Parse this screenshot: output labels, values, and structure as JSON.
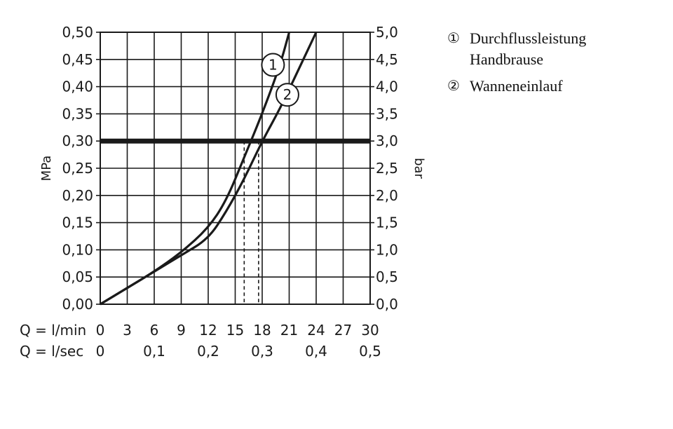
{
  "chart_data": {
    "type": "line",
    "title": "",
    "left_axis": {
      "label": "MPa",
      "range": [
        0,
        0.5
      ],
      "tick_labels": [
        "0,00",
        "0,05",
        "0,10",
        "0,15",
        "0,20",
        "0,25",
        "0,30",
        "0,35",
        "0,40",
        "0,45",
        "0,50"
      ]
    },
    "right_axis": {
      "label": "bar",
      "range": [
        0,
        5.0
      ],
      "tick_labels": [
        "0,0",
        "0,5",
        "1,0",
        "1,5",
        "2,0",
        "2,5",
        "3,0",
        "3,5",
        "4,0",
        "4,5",
        "5,0"
      ]
    },
    "x_axis_lmin": {
      "label": "Q = l/min",
      "range": [
        0,
        30
      ],
      "tick_labels": [
        "0",
        "3",
        "6",
        "9",
        "12",
        "15",
        "18",
        "21",
        "24",
        "27",
        "30"
      ]
    },
    "x_axis_lsec": {
      "label": "Q = l/sec",
      "ticks": [
        {
          "value": 0,
          "label": "0"
        },
        {
          "value": 0.1,
          "label": "0,1"
        },
        {
          "value": 0.2,
          "label": "0,2"
        },
        {
          "value": 0.3,
          "label": "0,3"
        },
        {
          "value": 0.4,
          "label": "0,4"
        },
        {
          "value": 0.5,
          "label": "0,5"
        }
      ]
    },
    "grid": true,
    "reference_line": {
      "y": 0.3
    },
    "series": [
      {
        "marker": "1",
        "x": [
          0,
          3,
          6,
          9,
          12,
          14,
          16,
          18,
          20,
          21
        ],
        "y": [
          0,
          0.03,
          0.06,
          0.095,
          0.14,
          0.19,
          0.27,
          0.35,
          0.44,
          0.5
        ],
        "marker_at": [
          19.2,
          0.44
        ],
        "drop_at_0.30": 16
      },
      {
        "marker": "2",
        "x": [
          0,
          3,
          6,
          9,
          12,
          14,
          16,
          18,
          20,
          22,
          24
        ],
        "y": [
          0,
          0.03,
          0.06,
          0.09,
          0.12,
          0.17,
          0.23,
          0.3,
          0.36,
          0.43,
          0.5
        ],
        "marker_at": [
          20.8,
          0.385
        ],
        "drop_at_0.30": 17.6
      }
    ]
  },
  "legend": {
    "items": [
      {
        "marker": "①",
        "lines": [
          "Durchflussleistung",
          "Handbrause"
        ]
      },
      {
        "marker": "②",
        "lines": [
          "Wanneneinlauf"
        ]
      }
    ]
  }
}
